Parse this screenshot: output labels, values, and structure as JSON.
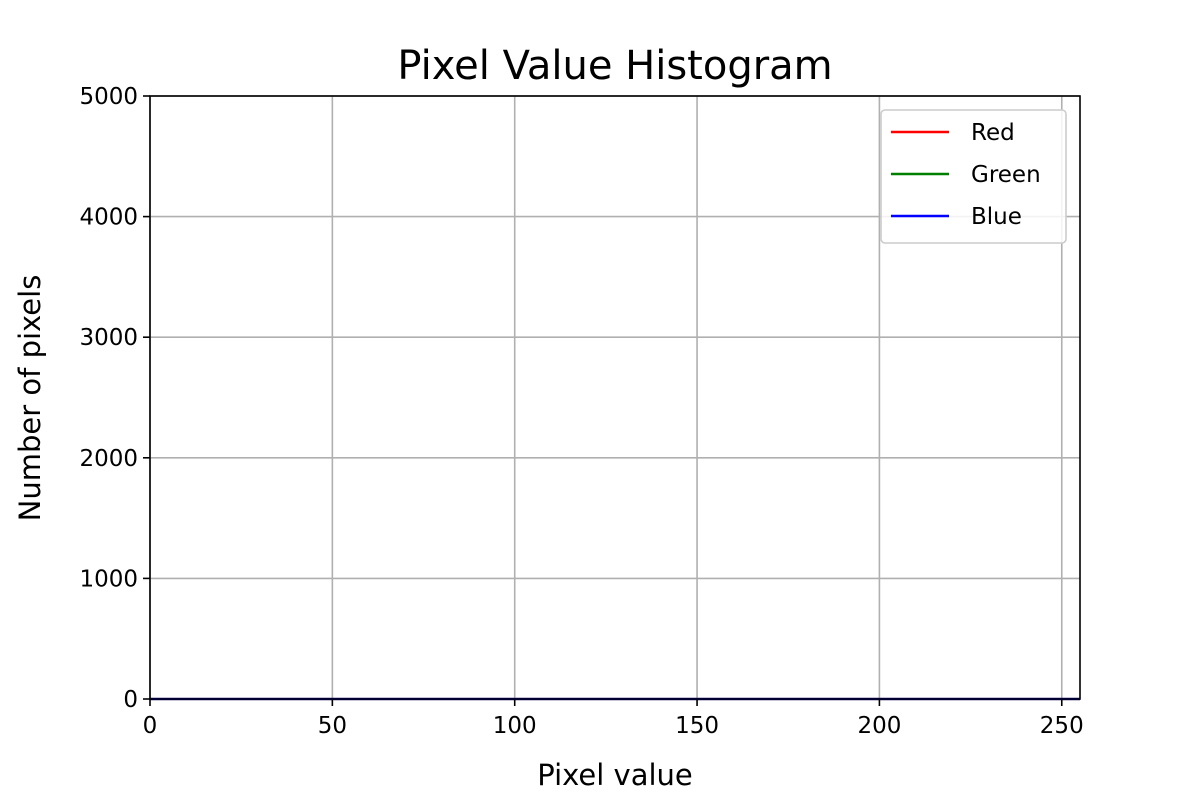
{
  "chart_data": {
    "type": "line",
    "title": "Pixel Value Histogram",
    "xlabel": "Pixel value",
    "ylabel": "Number of pixels",
    "xlim": [
      0,
      255
    ],
    "ylim": [
      0,
      5000
    ],
    "xticks": [
      0,
      50,
      100,
      150,
      200,
      250
    ],
    "yticks": [
      0,
      1000,
      2000,
      3000,
      4000,
      5000
    ],
    "grid": true,
    "legend_position": "top-right",
    "series": [
      {
        "name": "Red",
        "color": "#ff0000",
        "x": [
          0,
          255
        ],
        "y": [
          0,
          0
        ]
      },
      {
        "name": "Green",
        "color": "#008000",
        "x": [
          0,
          255
        ],
        "y": [
          0,
          0
        ]
      },
      {
        "name": "Blue",
        "color": "#0000ff",
        "x": [
          0,
          255
        ],
        "y": [
          0,
          0
        ]
      }
    ]
  }
}
